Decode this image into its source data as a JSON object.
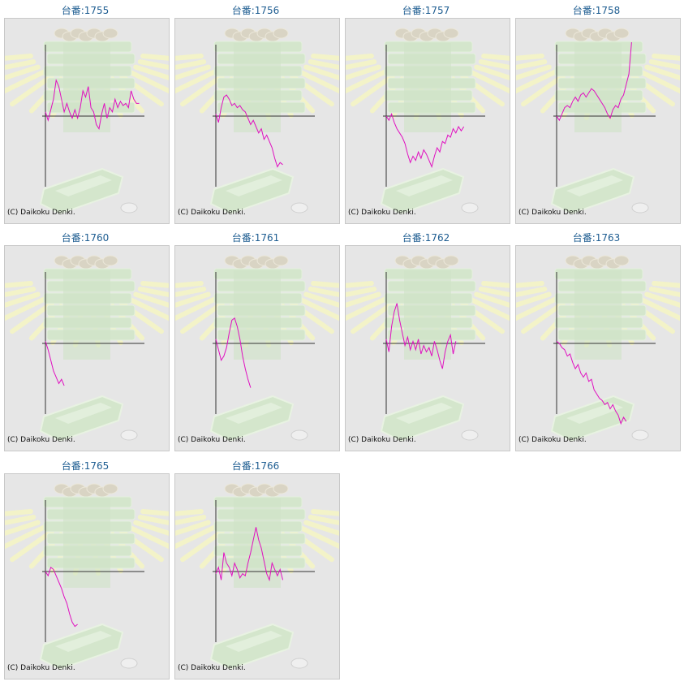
{
  "title_prefix": "台番:",
  "copyright": "(C) Daikoku Denki.",
  "colors": {
    "line": "#e010c0",
    "axis": "#333333",
    "title": "#1e5d91",
    "card_bg": "#e6e6e6"
  },
  "chart_data": [
    {
      "type": "line",
      "title": "台番:1755",
      "machine": "1755",
      "points": [
        [
          0,
          2
        ],
        [
          1,
          -2
        ],
        [
          2,
          3
        ],
        [
          3,
          8
        ],
        [
          4,
          17
        ],
        [
          5,
          14
        ],
        [
          6,
          8
        ],
        [
          7,
          2
        ],
        [
          8,
          6
        ],
        [
          9,
          2
        ],
        [
          10,
          -1
        ],
        [
          11,
          3
        ],
        [
          12,
          -1
        ],
        [
          13,
          4
        ],
        [
          14,
          12
        ],
        [
          15,
          9
        ],
        [
          16,
          14
        ],
        [
          17,
          4
        ],
        [
          18,
          2
        ],
        [
          19,
          -4
        ],
        [
          20,
          -6
        ],
        [
          21,
          1
        ],
        [
          22,
          6
        ],
        [
          23,
          -1
        ],
        [
          24,
          4
        ],
        [
          25,
          2
        ],
        [
          26,
          8
        ],
        [
          27,
          4
        ],
        [
          28,
          7
        ],
        [
          29,
          5
        ],
        [
          30,
          6
        ],
        [
          31,
          4
        ],
        [
          32,
          12
        ],
        [
          33,
          8
        ],
        [
          34,
          6
        ],
        [
          35,
          6
        ]
      ]
    },
    {
      "type": "line",
      "title": "台番:1756",
      "machine": "1756",
      "points": [
        [
          0,
          1
        ],
        [
          1,
          -3
        ],
        [
          2,
          4
        ],
        [
          3,
          9
        ],
        [
          4,
          10
        ],
        [
          5,
          8
        ],
        [
          6,
          5
        ],
        [
          7,
          6
        ],
        [
          8,
          4
        ],
        [
          9,
          5
        ],
        [
          10,
          3
        ],
        [
          11,
          2
        ],
        [
          12,
          -1
        ],
        [
          13,
          -4
        ],
        [
          14,
          -2
        ],
        [
          15,
          -5
        ],
        [
          16,
          -8
        ],
        [
          17,
          -6
        ],
        [
          18,
          -11
        ],
        [
          19,
          -9
        ],
        [
          20,
          -12
        ],
        [
          21,
          -15
        ],
        [
          22,
          -20
        ],
        [
          23,
          -24
        ],
        [
          24,
          -22
        ],
        [
          25,
          -23
        ]
      ]
    },
    {
      "type": "line",
      "title": "台番:1757",
      "machine": "1757",
      "points": [
        [
          0,
          0
        ],
        [
          1,
          -2
        ],
        [
          2,
          1
        ],
        [
          3,
          -3
        ],
        [
          4,
          -6
        ],
        [
          5,
          -8
        ],
        [
          6,
          -10
        ],
        [
          7,
          -13
        ],
        [
          8,
          -18
        ],
        [
          9,
          -22
        ],
        [
          10,
          -19
        ],
        [
          11,
          -21
        ],
        [
          12,
          -17
        ],
        [
          13,
          -20
        ],
        [
          14,
          -16
        ],
        [
          15,
          -18
        ],
        [
          16,
          -21
        ],
        [
          17,
          -24
        ],
        [
          18,
          -19
        ],
        [
          19,
          -15
        ],
        [
          20,
          -17
        ],
        [
          21,
          -12
        ],
        [
          22,
          -13
        ],
        [
          23,
          -9
        ],
        [
          24,
          -10
        ],
        [
          25,
          -6
        ],
        [
          26,
          -8
        ],
        [
          27,
          -5
        ],
        [
          28,
          -7
        ],
        [
          29,
          -5
        ]
      ]
    },
    {
      "type": "line",
      "title": "台番:1758",
      "machine": "1758",
      "points": [
        [
          0,
          0
        ],
        [
          1,
          -2
        ],
        [
          2,
          1
        ],
        [
          3,
          4
        ],
        [
          4,
          5
        ],
        [
          5,
          4
        ],
        [
          6,
          7
        ],
        [
          7,
          9
        ],
        [
          8,
          7
        ],
        [
          9,
          10
        ],
        [
          10,
          11
        ],
        [
          11,
          9
        ],
        [
          12,
          11
        ],
        [
          13,
          13
        ],
        [
          14,
          12
        ],
        [
          15,
          10
        ],
        [
          16,
          8
        ],
        [
          17,
          6
        ],
        [
          18,
          4
        ],
        [
          19,
          1
        ],
        [
          20,
          -1
        ],
        [
          21,
          3
        ],
        [
          22,
          5
        ],
        [
          23,
          4
        ],
        [
          24,
          8
        ],
        [
          25,
          10
        ],
        [
          26,
          15
        ],
        [
          27,
          20
        ],
        [
          28,
          35
        ]
      ]
    },
    {
      "type": "line",
      "title": "台番:1760",
      "machine": "1760",
      "points": [
        [
          0,
          1
        ],
        [
          1,
          -3
        ],
        [
          2,
          -8
        ],
        [
          3,
          -13
        ],
        [
          4,
          -16
        ],
        [
          5,
          -19
        ],
        [
          6,
          -17
        ],
        [
          7,
          -20
        ]
      ]
    },
    {
      "type": "line",
      "title": "台番:1761",
      "machine": "1761",
      "points": [
        [
          0,
          2
        ],
        [
          1,
          -3
        ],
        [
          2,
          -8
        ],
        [
          3,
          -6
        ],
        [
          4,
          -2
        ],
        [
          5,
          5
        ],
        [
          6,
          11
        ],
        [
          7,
          12
        ],
        [
          8,
          8
        ],
        [
          9,
          2
        ],
        [
          10,
          -6
        ],
        [
          11,
          -12
        ],
        [
          12,
          -17
        ],
        [
          13,
          -21
        ]
      ]
    },
    {
      "type": "line",
      "title": "台番:1762",
      "machine": "1762",
      "points": [
        [
          0,
          2
        ],
        [
          1,
          -4
        ],
        [
          2,
          8
        ],
        [
          3,
          15
        ],
        [
          4,
          19
        ],
        [
          5,
          11
        ],
        [
          6,
          5
        ],
        [
          7,
          -1
        ],
        [
          8,
          3
        ],
        [
          9,
          -3
        ],
        [
          10,
          1
        ],
        [
          11,
          -3
        ],
        [
          12,
          2
        ],
        [
          13,
          -5
        ],
        [
          14,
          -1
        ],
        [
          15,
          -4
        ],
        [
          16,
          -2
        ],
        [
          17,
          -6
        ],
        [
          18,
          1
        ],
        [
          19,
          -3
        ],
        [
          20,
          -8
        ],
        [
          21,
          -12
        ],
        [
          22,
          -4
        ],
        [
          23,
          1
        ],
        [
          24,
          4
        ],
        [
          25,
          -5
        ],
        [
          26,
          1
        ]
      ]
    },
    {
      "type": "line",
      "title": "台番:1763",
      "machine": "1763",
      "points": [
        [
          0,
          1
        ],
        [
          1,
          0
        ],
        [
          2,
          -2
        ],
        [
          3,
          -3
        ],
        [
          4,
          -6
        ],
        [
          5,
          -5
        ],
        [
          6,
          -9
        ],
        [
          7,
          -12
        ],
        [
          8,
          -10
        ],
        [
          9,
          -14
        ],
        [
          10,
          -16
        ],
        [
          11,
          -14
        ],
        [
          12,
          -18
        ],
        [
          13,
          -17
        ],
        [
          14,
          -22
        ],
        [
          15,
          -24
        ],
        [
          16,
          -26
        ],
        [
          17,
          -27
        ],
        [
          18,
          -29
        ],
        [
          19,
          -28
        ],
        [
          20,
          -31
        ],
        [
          21,
          -29
        ],
        [
          22,
          -32
        ],
        [
          23,
          -34
        ],
        [
          24,
          -38
        ],
        [
          25,
          -35
        ],
        [
          26,
          -37
        ]
      ]
    },
    {
      "type": "line",
      "title": "台番:1765",
      "machine": "1765",
      "points": [
        [
          0,
          0
        ],
        [
          1,
          -2
        ],
        [
          2,
          2
        ],
        [
          3,
          1
        ],
        [
          4,
          -2
        ],
        [
          5,
          -5
        ],
        [
          6,
          -8
        ],
        [
          7,
          -12
        ],
        [
          8,
          -15
        ],
        [
          9,
          -20
        ],
        [
          10,
          -24
        ],
        [
          11,
          -26
        ],
        [
          12,
          -25
        ]
      ]
    },
    {
      "type": "line",
      "title": "台番:1766",
      "machine": "1766",
      "points": [
        [
          0,
          -1
        ],
        [
          1,
          2
        ],
        [
          2,
          -4
        ],
        [
          3,
          9
        ],
        [
          4,
          4
        ],
        [
          5,
          2
        ],
        [
          6,
          -2
        ],
        [
          7,
          4
        ],
        [
          8,
          1
        ],
        [
          9,
          -3
        ],
        [
          10,
          -1
        ],
        [
          11,
          -2
        ],
        [
          12,
          4
        ],
        [
          13,
          9
        ],
        [
          14,
          15
        ],
        [
          15,
          21
        ],
        [
          16,
          15
        ],
        [
          17,
          11
        ],
        [
          18,
          5
        ],
        [
          19,
          -1
        ],
        [
          20,
          -4
        ],
        [
          21,
          4
        ],
        [
          22,
          1
        ],
        [
          23,
          -2
        ],
        [
          24,
          1
        ],
        [
          25,
          -4
        ]
      ]
    }
  ]
}
